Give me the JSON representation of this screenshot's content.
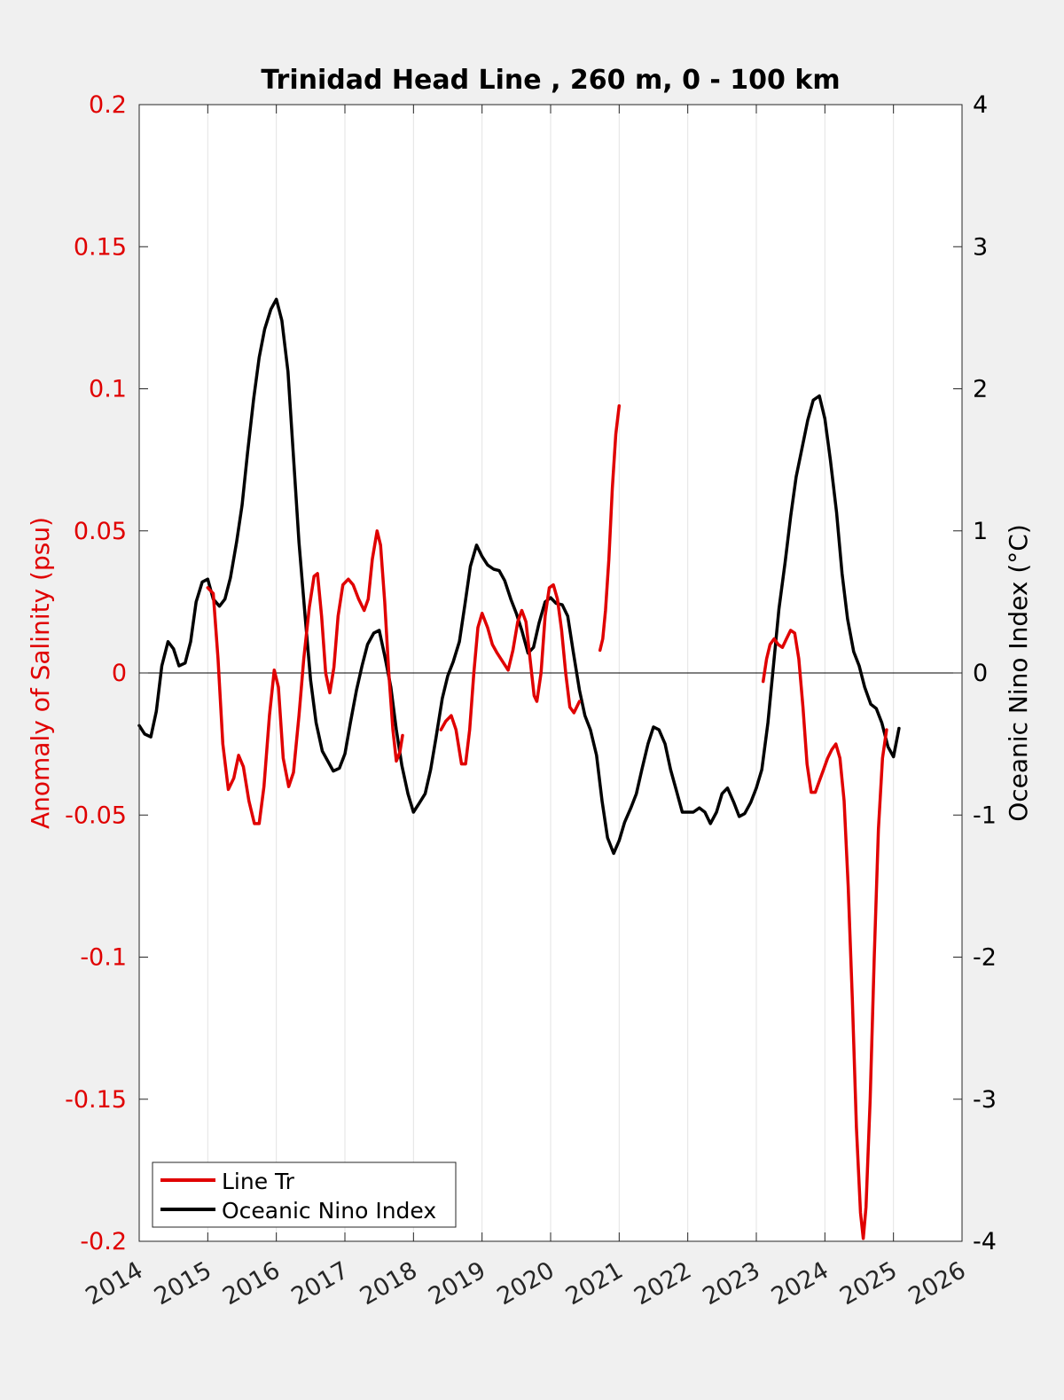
{
  "chart_data": {
    "type": "line",
    "title": "Trinidad Head Line , 260 m, 0 - 100 km",
    "xlabel": "",
    "ylabel_left": "Anomaly of Salinity (psu)",
    "ylabel_right": "Oceanic Nino Index (°C)",
    "xlim": [
      2014,
      2026
    ],
    "ylim_left": [
      -0.2,
      0.2
    ],
    "ylim_right": [
      -4,
      4
    ],
    "x_ticks": [
      2014,
      2015,
      2016,
      2017,
      2018,
      2019,
      2020,
      2021,
      2022,
      2023,
      2024,
      2025,
      2026
    ],
    "x_tick_labels": [
      "2014",
      "2015",
      "2016",
      "2017",
      "2018",
      "2019",
      "2020",
      "2021",
      "2022",
      "2023",
      "2024",
      "2025",
      "2026"
    ],
    "y_left_ticks": [
      0.2,
      0.15,
      0.1,
      0.05,
      0,
      -0.05,
      -0.1,
      -0.15,
      -0.2
    ],
    "y_left_tick_labels": [
      "0.2",
      "0.15",
      "0.1",
      "0.05",
      "0",
      "-0.05",
      "-0.1",
      "-0.15",
      "-0.2"
    ],
    "y_right_ticks": [
      4,
      3,
      2,
      1,
      0,
      -1,
      -2,
      -3,
      -4
    ],
    "y_right_tick_labels": [
      "4",
      "3",
      "2",
      "1",
      "0",
      "-1",
      "-2",
      "-3",
      "-4"
    ],
    "grid": "vertical",
    "legend_position": "bottom-left",
    "colors": {
      "salinity": "#e00000",
      "oni": "#000000",
      "left_axis": "#e00000",
      "right_axis": "#000000"
    },
    "series": [
      {
        "name": "Line Tr",
        "axis": "left",
        "segments": [
          [
            [
              2015.0,
              0.03
            ],
            [
              2015.08,
              0.028
            ],
            [
              2015.15,
              0.005
            ],
            [
              2015.22,
              -0.025
            ],
            [
              2015.3,
              -0.041
            ],
            [
              2015.38,
              -0.037
            ],
            [
              2015.45,
              -0.029
            ],
            [
              2015.52,
              -0.033
            ],
            [
              2015.6,
              -0.045
            ],
            [
              2015.68,
              -0.053
            ],
            [
              2015.75,
              -0.053
            ],
            [
              2015.82,
              -0.04
            ],
            [
              2015.9,
              -0.015
            ],
            [
              2015.97,
              0.001
            ],
            [
              2016.03,
              -0.005
            ],
            [
              2016.1,
              -0.03
            ],
            [
              2016.18,
              -0.04
            ],
            [
              2016.25,
              -0.035
            ],
            [
              2016.33,
              -0.015
            ],
            [
              2016.4,
              0.005
            ],
            [
              2016.48,
              0.023
            ],
            [
              2016.55,
              0.034
            ],
            [
              2016.6,
              0.035
            ],
            [
              2016.66,
              0.02
            ],
            [
              2016.72,
              0.0
            ],
            [
              2016.78,
              -0.007
            ],
            [
              2016.84,
              0.002
            ],
            [
              2016.9,
              0.02
            ],
            [
              2016.97,
              0.031
            ],
            [
              2017.05,
              0.033
            ],
            [
              2017.12,
              0.031
            ],
            [
              2017.2,
              0.026
            ],
            [
              2017.28,
              0.022
            ],
            [
              2017.34,
              0.026
            ],
            [
              2017.4,
              0.04
            ],
            [
              2017.47,
              0.05
            ],
            [
              2017.52,
              0.045
            ],
            [
              2017.58,
              0.025
            ],
            [
              2017.64,
              0.0
            ],
            [
              2017.7,
              -0.02
            ],
            [
              2017.75,
              -0.031
            ],
            [
              2017.8,
              -0.028
            ],
            [
              2017.84,
              -0.022
            ]
          ],
          [
            [
              2018.4,
              -0.02
            ],
            [
              2018.47,
              -0.017
            ],
            [
              2018.55,
              -0.015
            ],
            [
              2018.62,
              -0.02
            ],
            [
              2018.7,
              -0.032
            ],
            [
              2018.76,
              -0.032
            ],
            [
              2018.82,
              -0.02
            ],
            [
              2018.88,
              0.0
            ],
            [
              2018.94,
              0.016
            ],
            [
              2019.0,
              0.021
            ],
            [
              2019.08,
              0.016
            ],
            [
              2019.15,
              0.01
            ],
            [
              2019.22,
              0.007
            ],
            [
              2019.3,
              0.004
            ],
            [
              2019.38,
              0.001
            ],
            [
              2019.45,
              0.008
            ],
            [
              2019.52,
              0.018
            ],
            [
              2019.58,
              0.022
            ],
            [
              2019.64,
              0.018
            ],
            [
              2019.7,
              0.005
            ],
            [
              2019.76,
              -0.008
            ],
            [
              2019.8,
              -0.01
            ],
            [
              2019.86,
              0.0
            ],
            [
              2019.92,
              0.02
            ],
            [
              2019.98,
              0.03
            ],
            [
              2020.04,
              0.031
            ],
            [
              2020.1,
              0.026
            ],
            [
              2020.16,
              0.015
            ],
            [
              2020.22,
              0.0
            ],
            [
              2020.28,
              -0.012
            ],
            [
              2020.34,
              -0.014
            ],
            [
              2020.42,
              -0.01
            ]
          ],
          [
            [
              2020.72,
              0.008
            ],
            [
              2020.76,
              0.012
            ],
            [
              2020.8,
              0.022
            ],
            [
              2020.85,
              0.04
            ],
            [
              2020.9,
              0.065
            ],
            [
              2020.95,
              0.084
            ],
            [
              2021.0,
              0.094
            ]
          ],
          [
            [
              2023.1,
              -0.003
            ],
            [
              2023.15,
              0.005
            ],
            [
              2023.2,
              0.01
            ],
            [
              2023.26,
              0.012
            ],
            [
              2023.32,
              0.01
            ],
            [
              2023.38,
              0.009
            ],
            [
              2023.44,
              0.012
            ],
            [
              2023.5,
              0.015
            ],
            [
              2023.56,
              0.014
            ],
            [
              2023.62,
              0.005
            ],
            [
              2023.68,
              -0.012
            ],
            [
              2023.74,
              -0.032
            ],
            [
              2023.8,
              -0.042
            ],
            [
              2023.86,
              -0.042
            ],
            [
              2023.92,
              -0.038
            ],
            [
              2023.98,
              -0.034
            ],
            [
              2024.04,
              -0.03
            ],
            [
              2024.1,
              -0.027
            ],
            [
              2024.16,
              -0.025
            ],
            [
              2024.22,
              -0.03
            ],
            [
              2024.28,
              -0.045
            ],
            [
              2024.34,
              -0.075
            ],
            [
              2024.4,
              -0.115
            ],
            [
              2024.46,
              -0.16
            ],
            [
              2024.52,
              -0.19
            ],
            [
              2024.56,
              -0.199
            ],
            [
              2024.6,
              -0.188
            ],
            [
              2024.66,
              -0.15
            ],
            [
              2024.72,
              -0.1
            ],
            [
              2024.78,
              -0.055
            ],
            [
              2024.84,
              -0.03
            ],
            [
              2024.9,
              -0.02
            ]
          ]
        ]
      },
      {
        "name": "Oceanic Nino Index",
        "axis": "right",
        "segments": [
          [
            [
              2014.0,
              -0.37
            ],
            [
              2014.08,
              -0.43
            ],
            [
              2014.17,
              -0.45
            ],
            [
              2014.25,
              -0.27
            ],
            [
              2014.33,
              0.05
            ],
            [
              2014.42,
              0.22
            ],
            [
              2014.5,
              0.17
            ],
            [
              2014.58,
              0.05
            ],
            [
              2014.67,
              0.07
            ],
            [
              2014.75,
              0.22
            ],
            [
              2014.83,
              0.5
            ],
            [
              2014.92,
              0.64
            ],
            [
              2015.0,
              0.66
            ],
            [
              2015.08,
              0.52
            ],
            [
              2015.17,
              0.47
            ],
            [
              2015.25,
              0.52
            ],
            [
              2015.33,
              0.67
            ],
            [
              2015.42,
              0.92
            ],
            [
              2015.5,
              1.18
            ],
            [
              2015.58,
              1.55
            ],
            [
              2015.67,
              1.93
            ],
            [
              2015.75,
              2.22
            ],
            [
              2015.83,
              2.42
            ],
            [
              2015.92,
              2.56
            ],
            [
              2016.0,
              2.63
            ],
            [
              2016.08,
              2.48
            ],
            [
              2016.17,
              2.12
            ],
            [
              2016.25,
              1.52
            ],
            [
              2016.33,
              0.92
            ],
            [
              2016.42,
              0.4
            ],
            [
              2016.5,
              -0.05
            ],
            [
              2016.58,
              -0.35
            ],
            [
              2016.67,
              -0.55
            ],
            [
              2016.75,
              -0.62
            ],
            [
              2016.83,
              -0.69
            ],
            [
              2016.92,
              -0.67
            ],
            [
              2017.0,
              -0.57
            ],
            [
              2017.08,
              -0.35
            ],
            [
              2017.17,
              -0.12
            ],
            [
              2017.25,
              0.05
            ],
            [
              2017.33,
              0.2
            ],
            [
              2017.42,
              0.28
            ],
            [
              2017.5,
              0.3
            ],
            [
              2017.58,
              0.12
            ],
            [
              2017.67,
              -0.1
            ],
            [
              2017.75,
              -0.4
            ],
            [
              2017.83,
              -0.65
            ],
            [
              2017.92,
              -0.85
            ],
            [
              2018.0,
              -0.98
            ],
            [
              2018.08,
              -0.92
            ],
            [
              2018.17,
              -0.85
            ],
            [
              2018.25,
              -0.68
            ],
            [
              2018.33,
              -0.45
            ],
            [
              2018.42,
              -0.18
            ],
            [
              2018.5,
              -0.02
            ],
            [
              2018.58,
              0.08
            ],
            [
              2018.67,
              0.22
            ],
            [
              2018.75,
              0.48
            ],
            [
              2018.83,
              0.75
            ],
            [
              2018.92,
              0.9
            ],
            [
              2019.0,
              0.82
            ],
            [
              2019.08,
              0.76
            ],
            [
              2019.17,
              0.73
            ],
            [
              2019.25,
              0.72
            ],
            [
              2019.33,
              0.65
            ],
            [
              2019.42,
              0.52
            ],
            [
              2019.5,
              0.42
            ],
            [
              2019.58,
              0.3
            ],
            [
              2019.67,
              0.14
            ],
            [
              2019.75,
              0.18
            ],
            [
              2019.83,
              0.35
            ],
            [
              2019.92,
              0.5
            ],
            [
              2020.0,
              0.53
            ],
            [
              2020.08,
              0.49
            ],
            [
              2020.17,
              0.48
            ],
            [
              2020.25,
              0.4
            ],
            [
              2020.33,
              0.15
            ],
            [
              2020.42,
              -0.12
            ],
            [
              2020.5,
              -0.3
            ],
            [
              2020.58,
              -0.4
            ],
            [
              2020.67,
              -0.58
            ],
            [
              2020.75,
              -0.9
            ],
            [
              2020.83,
              -1.16
            ],
            [
              2020.92,
              -1.27
            ],
            [
              2021.0,
              -1.18
            ],
            [
              2021.08,
              -1.05
            ],
            [
              2021.17,
              -0.95
            ],
            [
              2021.25,
              -0.85
            ],
            [
              2021.33,
              -0.68
            ],
            [
              2021.42,
              -0.5
            ],
            [
              2021.5,
              -0.38
            ],
            [
              2021.58,
              -0.4
            ],
            [
              2021.67,
              -0.5
            ],
            [
              2021.75,
              -0.68
            ],
            [
              2021.83,
              -0.82
            ],
            [
              2021.92,
              -0.98
            ],
            [
              2022.0,
              -0.98
            ],
            [
              2022.08,
              -0.98
            ],
            [
              2022.17,
              -0.95
            ],
            [
              2022.25,
              -0.98
            ],
            [
              2022.33,
              -1.06
            ],
            [
              2022.42,
              -0.98
            ],
            [
              2022.5,
              -0.85
            ],
            [
              2022.58,
              -0.81
            ],
            [
              2022.67,
              -0.91
            ],
            [
              2022.75,
              -1.01
            ],
            [
              2022.83,
              -0.99
            ],
            [
              2022.92,
              -0.91
            ],
            [
              2023.0,
              -0.81
            ],
            [
              2023.08,
              -0.68
            ],
            [
              2023.17,
              -0.35
            ],
            [
              2023.25,
              0.05
            ],
            [
              2023.33,
              0.45
            ],
            [
              2023.42,
              0.78
            ],
            [
              2023.5,
              1.1
            ],
            [
              2023.58,
              1.38
            ],
            [
              2023.67,
              1.59
            ],
            [
              2023.75,
              1.78
            ],
            [
              2023.83,
              1.92
            ],
            [
              2023.92,
              1.95
            ],
            [
              2024.0,
              1.79
            ],
            [
              2024.08,
              1.5
            ],
            [
              2024.17,
              1.13
            ],
            [
              2024.25,
              0.7
            ],
            [
              2024.33,
              0.38
            ],
            [
              2024.42,
              0.15
            ],
            [
              2024.5,
              0.05
            ],
            [
              2024.58,
              -0.1
            ],
            [
              2024.67,
              -0.22
            ],
            [
              2024.75,
              -0.25
            ],
            [
              2024.83,
              -0.35
            ],
            [
              2024.92,
              -0.52
            ],
            [
              2025.0,
              -0.59
            ],
            [
              2025.08,
              -0.39
            ]
          ]
        ]
      }
    ]
  },
  "legend": {
    "items": [
      {
        "label": "Line Tr",
        "color": "#e00000"
      },
      {
        "label": "Oceanic Nino Index",
        "color": "#000000"
      }
    ]
  }
}
